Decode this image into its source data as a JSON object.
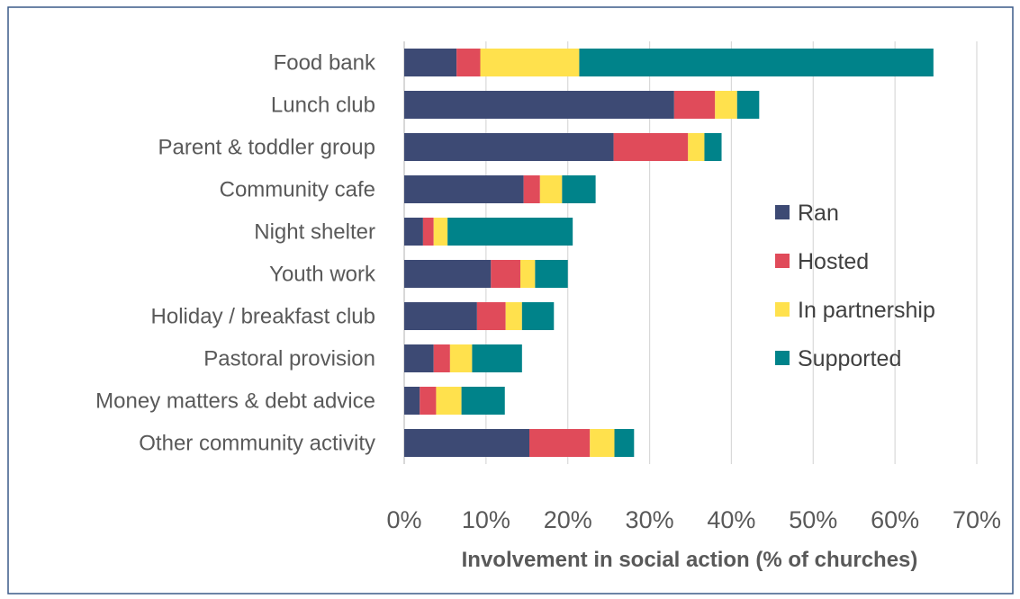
{
  "chart_data": {
    "type": "bar",
    "orientation": "horizontal",
    "stacked": true,
    "title": "",
    "xlabel": "Involvement in social action (% of churches)",
    "ylabel": "",
    "xlim": [
      0,
      70
    ],
    "x_ticks": [
      "0%",
      "10%",
      "20%",
      "30%",
      "40%",
      "50%",
      "60%",
      "70%"
    ],
    "grid": "vertical gridlines",
    "legend_position": "right",
    "categories": [
      "Food bank",
      "Lunch club",
      "Parent & toddler group",
      "Community cafe",
      "Night shelter",
      "Youth work",
      "Holiday / breakfast club",
      "Pastoral provision",
      "Money matters & debt advice",
      "Other community activity"
    ],
    "series": [
      {
        "name": "Ran",
        "color": "#3d4a74",
        "values": [
          6.4,
          33.0,
          25.6,
          14.6,
          2.3,
          10.6,
          8.9,
          3.6,
          1.9,
          15.3
        ]
      },
      {
        "name": "Hosted",
        "color": "#e04b5a",
        "values": [
          2.9,
          5.0,
          9.1,
          2.0,
          1.3,
          3.6,
          3.5,
          2.0,
          2.0,
          7.4
        ]
      },
      {
        "name": "In partnership",
        "color": "#ffe14d",
        "values": [
          12.1,
          2.7,
          2.0,
          2.7,
          1.7,
          1.8,
          2.0,
          2.7,
          3.1,
          3.0
        ]
      },
      {
        "name": "Supported",
        "color": "#00838a",
        "values": [
          43.3,
          2.7,
          2.1,
          4.1,
          15.3,
          4.0,
          3.9,
          6.1,
          5.3,
          2.4
        ]
      }
    ]
  }
}
